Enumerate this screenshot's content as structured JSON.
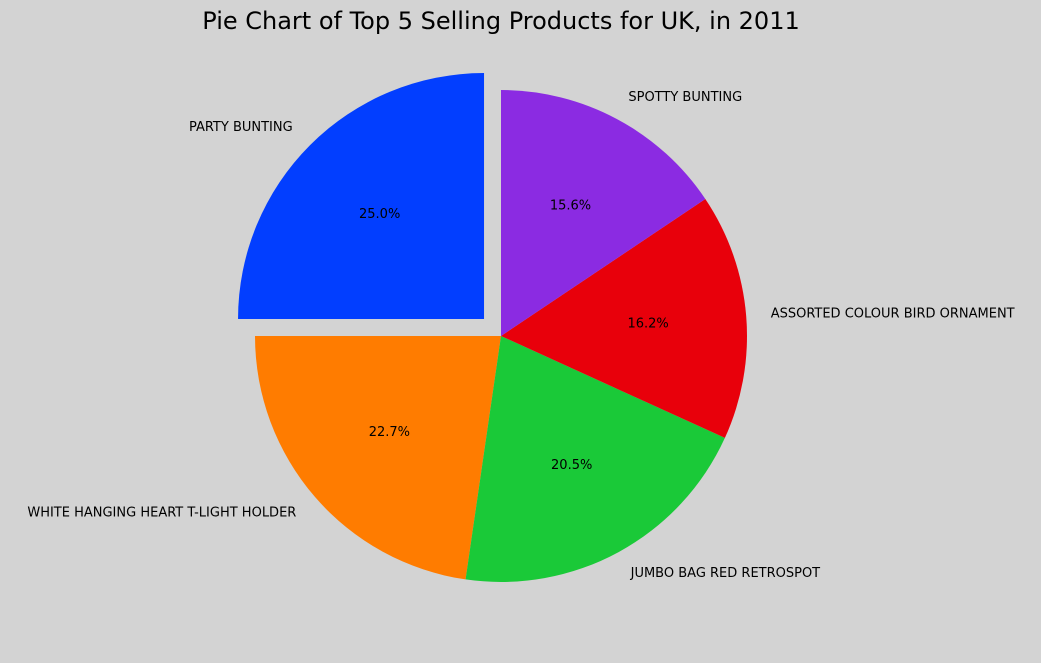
{
  "chart_data": {
    "type": "pie",
    "title": "Pie Chart of Top 5 Selling Products for UK, in 2011",
    "start_angle_deg": 90,
    "direction": "counterclockwise",
    "slices": [
      {
        "label": "PARTY BUNTING",
        "percent": 25.0,
        "percent_label": "25.0%",
        "color": "#023eff",
        "exploded": true
      },
      {
        "label": "WHITE HANGING HEART T-LIGHT HOLDER",
        "percent": 22.7,
        "percent_label": "22.7%",
        "color": "#ff7c00",
        "exploded": false
      },
      {
        "label": "JUMBO BAG RED RETROSPOT",
        "percent": 20.5,
        "percent_label": "20.5%",
        "color": "#1ac938",
        "exploded": false
      },
      {
        "label": "ASSORTED COLOUR BIRD ORNAMENT",
        "percent": 16.2,
        "percent_label": "16.2%",
        "color": "#e8000b",
        "exploded": false
      },
      {
        "label": "SPOTTY BUNTING",
        "percent": 15.6,
        "percent_label": "15.6%",
        "color": "#8b2be2",
        "exploded": false
      }
    ],
    "background_color": "#d3d3d3"
  }
}
